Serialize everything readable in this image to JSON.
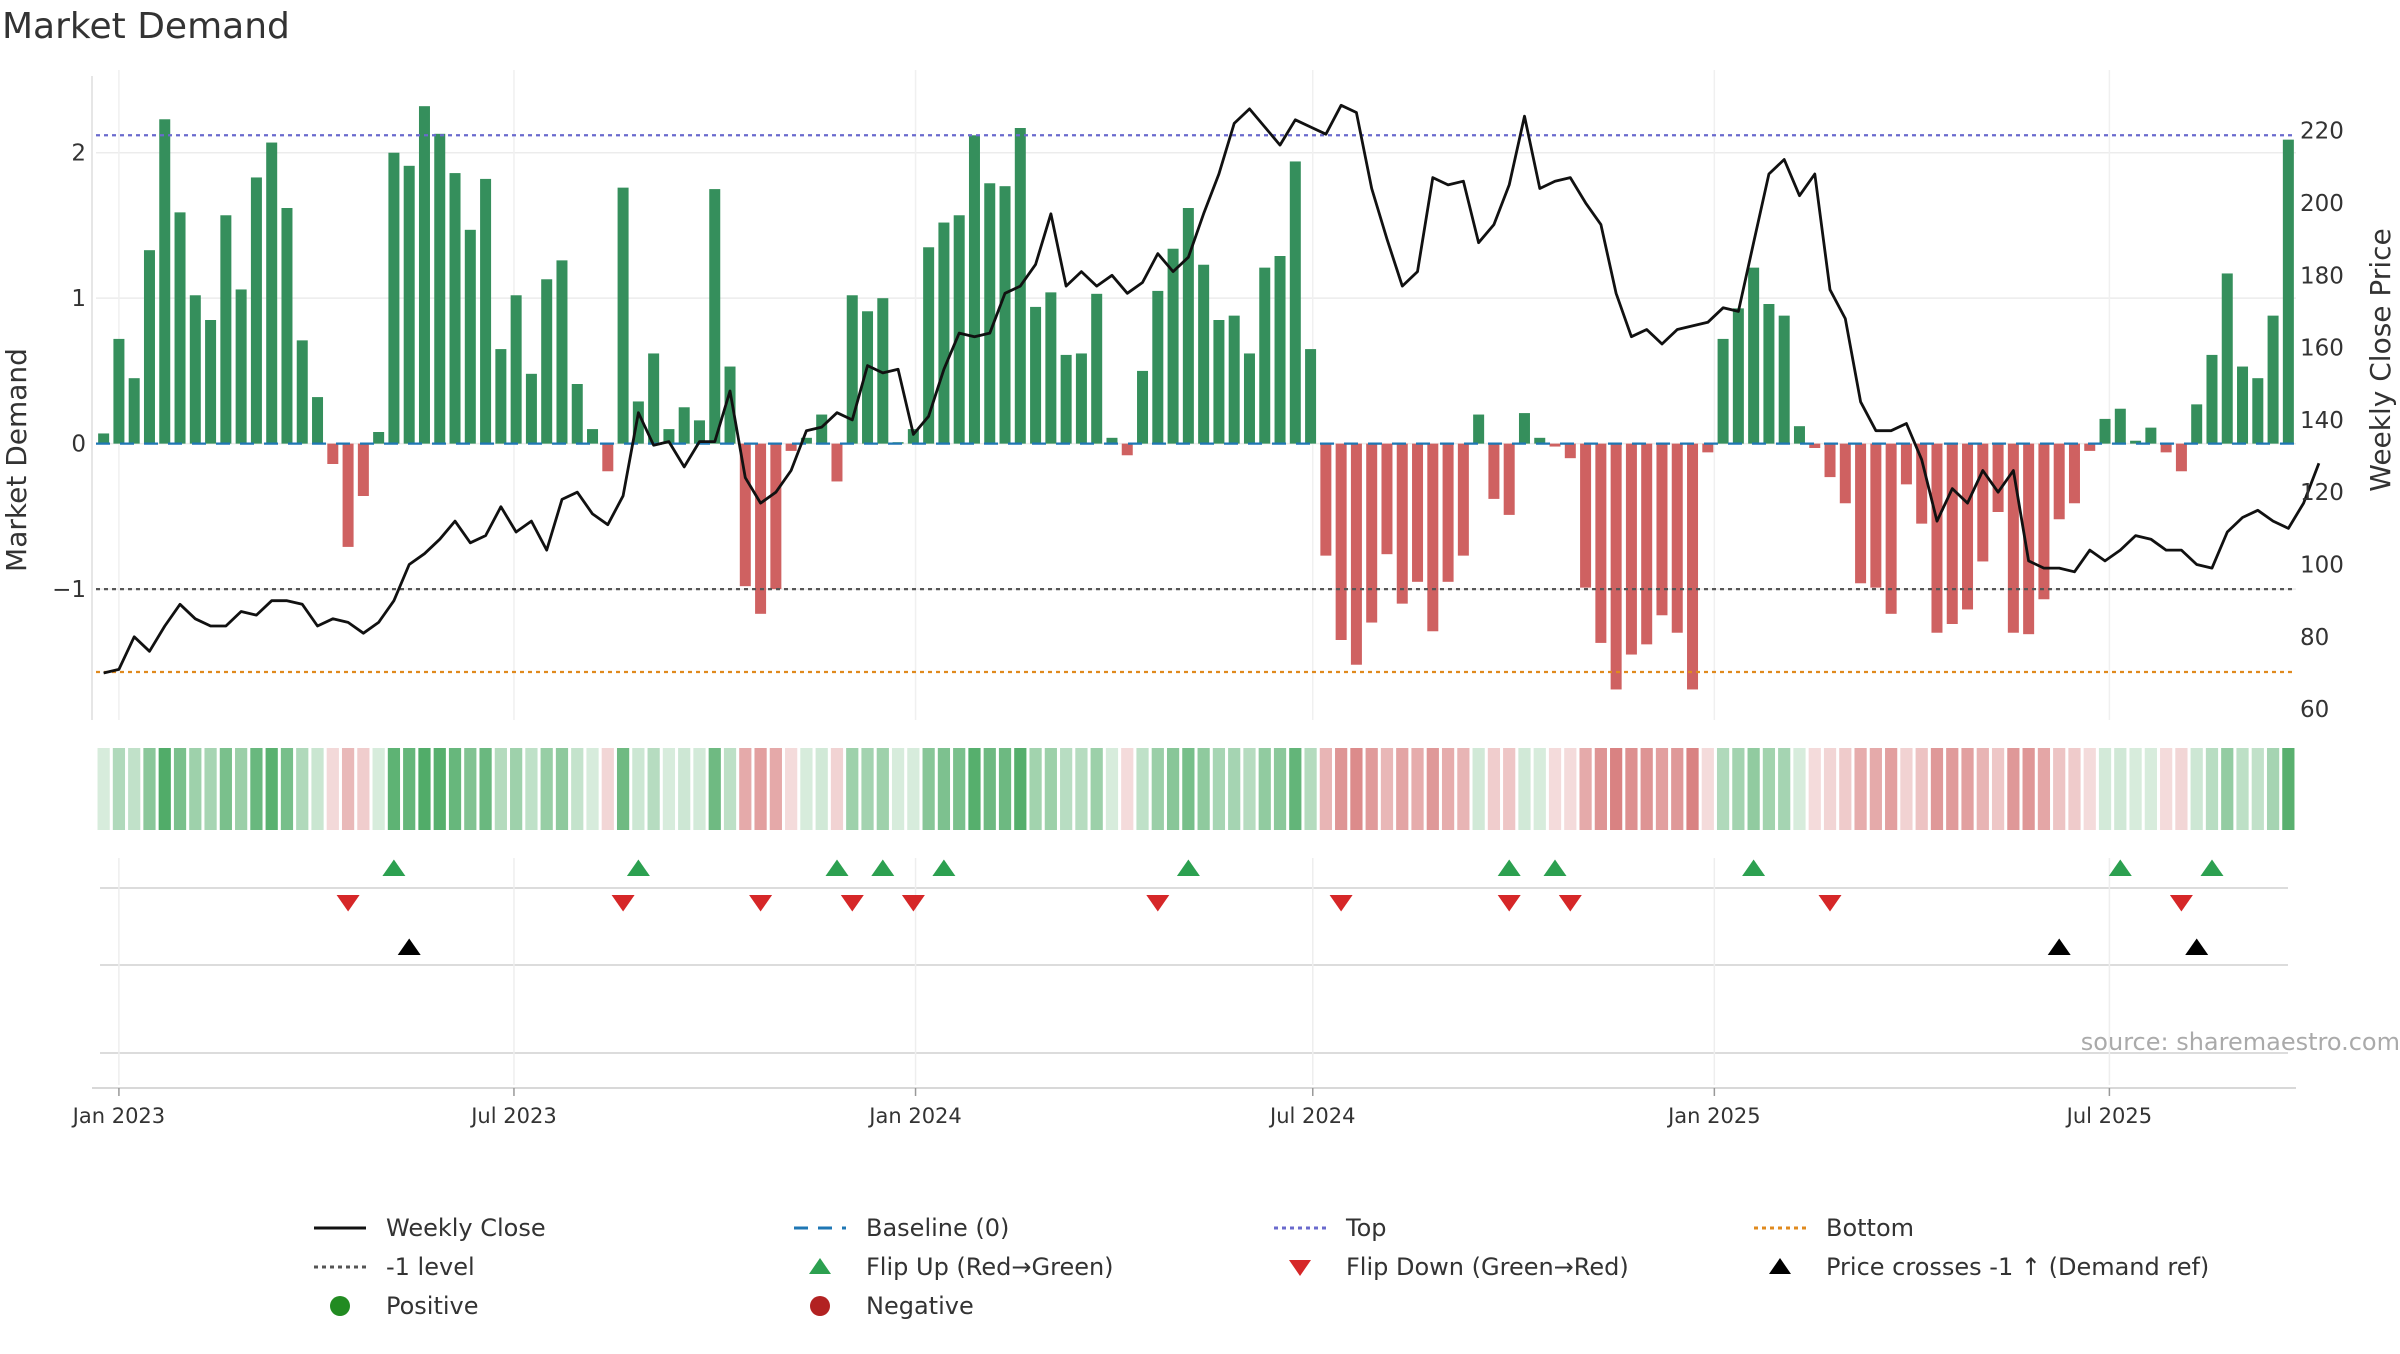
{
  "chart_data": {
    "type": "bar",
    "title": "Market Demand",
    "ylabel": "Market Demand",
    "y2label": "Weekly Close Price",
    "ylim": [
      -1.9,
      2.5
    ],
    "y2lim": [
      57,
      234
    ],
    "y_ticks": [
      -1,
      0,
      1,
      2
    ],
    "y_tick_labels": [
      "−1",
      "0",
      "1",
      "2"
    ],
    "y2_ticks": [
      60,
      80,
      100,
      120,
      140,
      160,
      180,
      200,
      220
    ],
    "y2_tick_labels": [
      "60",
      "80",
      "100",
      "120",
      "140",
      "160",
      "180",
      "200",
      "220"
    ],
    "x_ticks": [
      "2023-01-01",
      "2023-07-01",
      "2024-01-01",
      "2024-07-01",
      "2025-01-01",
      "2025-07-01"
    ],
    "x_tick_labels": [
      "Jan 2023",
      "Jul 2023",
      "Jan 2024",
      "Jul 2024",
      "Jan 2025",
      "Jul 2025"
    ],
    "start_date": "2022-12-25",
    "week_step_days": 7,
    "reference_lines": {
      "top": 2.12,
      "bottom": -1.57,
      "level_minus1": -1,
      "baseline": 0
    },
    "demand": [
      0.07,
      0.72,
      0.45,
      1.33,
      2.23,
      1.59,
      1.02,
      0.85,
      1.57,
      1.06,
      1.83,
      2.07,
      1.62,
      0.71,
      0.32,
      -0.14,
      -0.71,
      -0.36,
      0.08,
      2.0,
      1.91,
      2.32,
      2.13,
      1.86,
      1.47,
      1.82,
      0.65,
      1.02,
      0.48,
      1.13,
      1.26,
      0.41,
      0.1,
      -0.19,
      1.76,
      0.29,
      0.62,
      0.1,
      0.25,
      0.16,
      1.75,
      0.53,
      -0.98,
      -1.17,
      -1.0,
      -0.05,
      0.04,
      0.2,
      -0.26,
      1.02,
      0.91,
      1.0,
      0.01,
      0.1,
      1.35,
      1.52,
      1.57,
      2.12,
      1.79,
      1.77,
      2.17,
      0.94,
      1.04,
      0.61,
      0.62,
      1.03,
      0.04,
      -0.08,
      0.5,
      1.05,
      1.34,
      1.62,
      1.23,
      0.85,
      0.88,
      0.62,
      1.21,
      1.29,
      1.94,
      0.65,
      -0.77,
      -1.35,
      -1.52,
      -1.23,
      -0.76,
      -1.1,
      -0.95,
      -1.29,
      -0.95,
      -0.77,
      0.2,
      -0.38,
      -0.49,
      0.21,
      0.04,
      -0.02,
      -0.1,
      -0.99,
      -1.37,
      -1.69,
      -1.45,
      -1.38,
      -1.18,
      -1.3,
      -1.69,
      -0.06,
      0.72,
      0.93,
      1.21,
      0.96,
      0.88,
      0.12,
      -0.03,
      -0.23,
      -0.41,
      -0.96,
      -0.99,
      -1.17,
      -0.28,
      -0.55,
      -1.3,
      -1.24,
      -1.14,
      -0.81,
      -0.47,
      -1.3,
      -1.31,
      -1.07,
      -0.52,
      -0.41,
      -0.05,
      0.17,
      0.24,
      0.02,
      0.11,
      -0.06,
      -0.19,
      0.27,
      0.61,
      1.17,
      0.53,
      0.45,
      0.88,
      2.09
    ],
    "weekly_close": [
      70,
      71,
      80,
      76,
      83,
      89,
      85,
      83,
      83,
      87,
      86,
      90,
      90,
      89,
      83,
      85,
      84,
      81,
      84,
      90,
      100,
      103,
      107,
      112,
      106,
      108,
      116,
      109,
      112,
      104,
      118,
      120,
      114,
      111,
      119,
      142,
      133,
      134,
      127,
      134,
      134,
      148,
      124,
      117,
      120,
      126,
      137,
      138,
      142,
      140,
      155,
      153,
      154,
      136,
      141,
      154,
      164,
      163,
      164,
      175,
      177,
      183,
      197,
      177,
      181,
      177,
      180,
      175,
      178,
      186,
      181,
      185,
      197,
      208,
      222,
      226,
      221,
      216,
      223,
      221,
      219,
      227,
      225,
      204,
      190,
      177,
      181,
      207,
      205,
      206,
      189,
      194,
      205,
      224,
      204,
      206,
      207,
      200,
      194,
      175,
      163,
      165,
      161,
      165,
      166,
      167,
      171,
      170,
      189,
      208,
      212,
      202,
      208,
      176,
      168,
      145,
      137,
      137,
      139,
      129,
      112,
      121,
      117,
      126,
      120,
      126,
      101,
      99,
      99,
      98,
      104,
      101,
      104,
      108,
      107,
      104,
      104,
      100,
      99,
      109,
      113,
      115,
      112,
      110,
      117,
      128
    ],
    "flip_up_weeks": [
      19,
      35,
      48,
      51,
      55,
      71,
      92,
      95,
      108,
      132,
      138
    ],
    "flip_down_weeks": [
      16,
      34,
      43,
      49,
      53,
      69,
      81,
      92,
      96,
      113,
      136
    ],
    "price_cross_weeks": [
      20,
      128,
      137
    ],
    "colors": {
      "positive": "#2e8b57",
      "negative": "#cd5c5c",
      "price": "#111111",
      "baseline": "#1f77b4",
      "top": "#6a6acd",
      "bottom": "#e08a1e",
      "level": "#555555",
      "flip_up": "#2ca050",
      "flip_down": "#d62728",
      "cross": "#000000",
      "strip_pos": "#48a861",
      "strip_neg": "#cd5c5c"
    }
  },
  "source_label": "source: sharemaestro.com",
  "legend": [
    {
      "label": "Weekly Close",
      "symbol": "line",
      "color": "#111111"
    },
    {
      "label": "Baseline (0)",
      "symbol": "dash",
      "color": "#1f77b4"
    },
    {
      "label": "Top",
      "symbol": "dot",
      "color": "#6a6acd"
    },
    {
      "label": "Bottom",
      "symbol": "dot",
      "color": "#e08a1e"
    },
    {
      "label": "-1 level",
      "symbol": "dot",
      "color": "#555555"
    },
    {
      "label": "Flip Up (Red→Green)",
      "symbol": "tri-up",
      "color": "#2ca050"
    },
    {
      "label": "Flip Down (Green→Red)",
      "symbol": "tri-down",
      "color": "#d62728"
    },
    {
      "label": "Price crosses -1 ↑ (Demand ref)",
      "symbol": "tri-up",
      "color": "#000000"
    },
    {
      "label": "Positive",
      "symbol": "circle",
      "color": "#228b22"
    },
    {
      "label": "Negative",
      "symbol": "circle",
      "color": "#b22222"
    }
  ]
}
